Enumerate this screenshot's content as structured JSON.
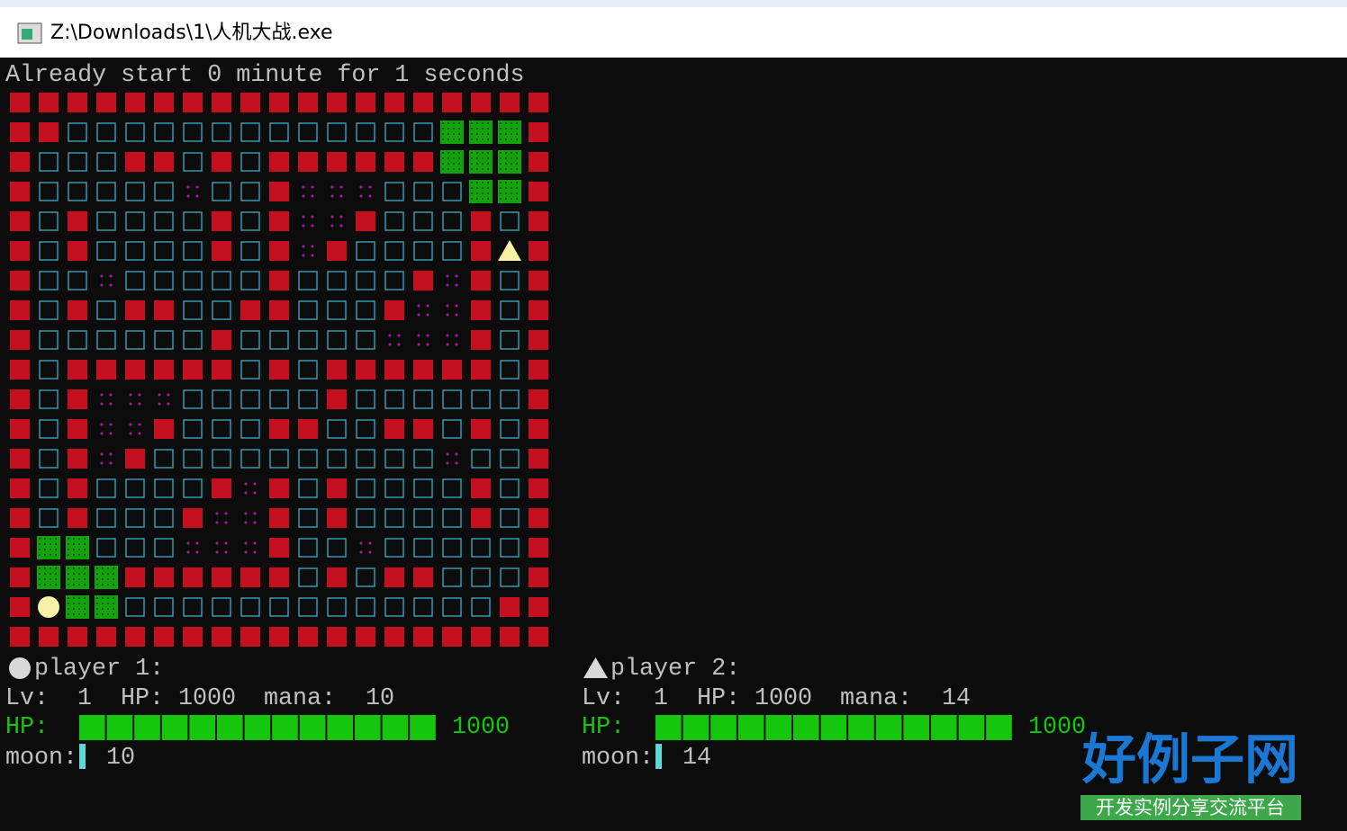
{
  "window": {
    "title": "Z:\\Downloads\\1\\人机大战.exe"
  },
  "status": "Already start 0 minute for 1 seconds",
  "players": [
    {
      "label": "player 1:",
      "lv_label": "Lv:",
      "lv": 1,
      "hp_label": "HP:",
      "hp": 1000,
      "mana_label": "mana:",
      "mana": 10,
      "hp_bar_label": "HP:",
      "hp_bar_value": 1000,
      "moon_label": "moon:",
      "moon": 10
    },
    {
      "label": "player 2:",
      "lv_label": "Lv:",
      "lv": 1,
      "hp_label": "HP:",
      "hp": 1000,
      "mana_label": "mana:",
      "mana": 14,
      "hp_bar_label": "HP:",
      "hp_bar_value": 1000,
      "moon_label": "moon:",
      "moon": 14
    }
  ],
  "watermark": {
    "title": "好例子网",
    "subtitle": "开发实例分享交流平台"
  }
}
